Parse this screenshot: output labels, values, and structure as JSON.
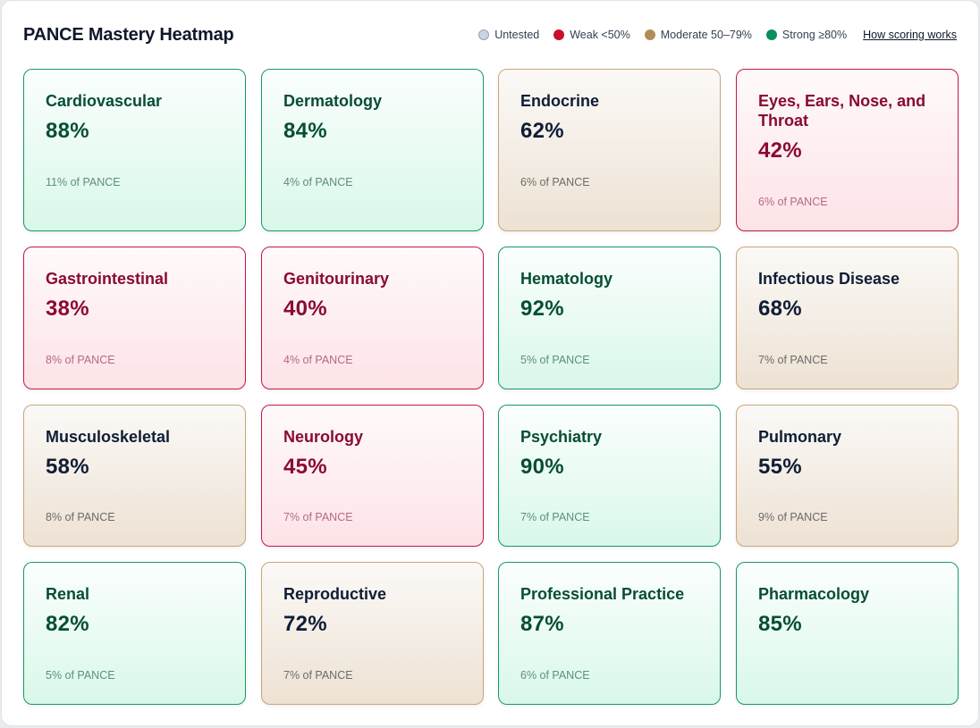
{
  "header": {
    "title": "PANCE Mastery Heatmap",
    "legend": [
      {
        "label": "Untested",
        "level": "untested",
        "color": "#cbd5e1"
      },
      {
        "label": "Weak <50%",
        "level": "weak",
        "color": "#c8102e"
      },
      {
        "label": "Moderate 50–79%",
        "level": "moderate",
        "color": "#b08d57"
      },
      {
        "label": "Strong ≥80%",
        "level": "strong",
        "color": "#0b8f5c"
      }
    ],
    "scoring_link": "How scoring works"
  },
  "cards": [
    {
      "title": "Cardiovascular",
      "score": "88%",
      "weight": "11% of PANCE",
      "level": "strong"
    },
    {
      "title": "Dermatology",
      "score": "84%",
      "weight": "4% of PANCE",
      "level": "strong"
    },
    {
      "title": "Endocrine",
      "score": "62%",
      "weight": "6% of PANCE",
      "level": "moderate"
    },
    {
      "title": "Eyes, Ears, Nose, and Throat",
      "score": "42%",
      "weight": "6% of PANCE",
      "level": "weak"
    },
    {
      "title": "Gastrointestinal",
      "score": "38%",
      "weight": "8% of PANCE",
      "level": "weak"
    },
    {
      "title": "Genitourinary",
      "score": "40%",
      "weight": "4% of PANCE",
      "level": "weak"
    },
    {
      "title": "Hematology",
      "score": "92%",
      "weight": "5% of PANCE",
      "level": "strong"
    },
    {
      "title": "Infectious Disease",
      "score": "68%",
      "weight": "7% of PANCE",
      "level": "moderate"
    },
    {
      "title": "Musculoskeletal",
      "score": "58%",
      "weight": "8% of PANCE",
      "level": "moderate"
    },
    {
      "title": "Neurology",
      "score": "45%",
      "weight": "7% of PANCE",
      "level": "weak"
    },
    {
      "title": "Psychiatry",
      "score": "90%",
      "weight": "7% of PANCE",
      "level": "strong"
    },
    {
      "title": "Pulmonary",
      "score": "55%",
      "weight": "9% of PANCE",
      "level": "moderate"
    },
    {
      "title": "Renal",
      "score": "82%",
      "weight": "5% of PANCE",
      "level": "strong"
    },
    {
      "title": "Reproductive",
      "score": "72%",
      "weight": "7% of PANCE",
      "level": "moderate"
    },
    {
      "title": "Professional Practice",
      "score": "87%",
      "weight": "6% of PANCE",
      "level": "strong"
    },
    {
      "title": "Pharmacology",
      "score": "85%",
      "weight": "",
      "level": "strong"
    }
  ]
}
